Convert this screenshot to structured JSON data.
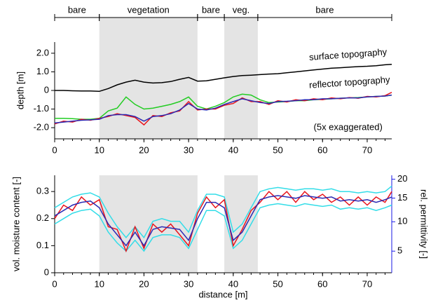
{
  "chart_data": [
    {
      "type": "line",
      "ylabel": "depth [m]",
      "regions": [
        {
          "label": "bare",
          "start": 0,
          "end": 10,
          "shaded": false
        },
        {
          "label": "vegetation",
          "start": 10,
          "end": 32,
          "shaded": true
        },
        {
          "label": "bare",
          "start": 32,
          "end": 38,
          "shaded": false
        },
        {
          "label": "veg.",
          "start": 38,
          "end": 45.5,
          "shaded": true
        },
        {
          "label": "bare",
          "start": 45.5,
          "end": 75.5,
          "shaded": false
        }
      ],
      "annotations": [
        "surface topography",
        "reflector topography",
        "(5x exaggerated)"
      ],
      "x": [
        0,
        2,
        4,
        6,
        8,
        10,
        12,
        14,
        16,
        18,
        20,
        22,
        24,
        26,
        28,
        30,
        32,
        34,
        36,
        38,
        40,
        42,
        44,
        46,
        48,
        50,
        52,
        54,
        56,
        58,
        60,
        62,
        64,
        66,
        68,
        70,
        72,
        74,
        75.5
      ],
      "series": [
        {
          "color": "#000000",
          "values": [
            0.0,
            0.0,
            -0.02,
            -0.03,
            -0.03,
            -0.05,
            0.1,
            0.3,
            0.45,
            0.55,
            0.45,
            0.4,
            0.42,
            0.48,
            0.6,
            0.7,
            0.5,
            0.52,
            0.6,
            0.68,
            0.75,
            0.8,
            0.82,
            0.85,
            0.88,
            0.9,
            0.95,
            1.0,
            1.05,
            1.1,
            1.15,
            1.2,
            1.22,
            1.25,
            1.28,
            1.3,
            1.33,
            1.38,
            1.4
          ]
        },
        {
          "color": "#22cc22",
          "values": [
            -1.5,
            -1.5,
            -1.52,
            -1.55,
            -1.55,
            -1.5,
            -1.1,
            -0.95,
            -0.35,
            -0.75,
            -1.0,
            -0.95,
            -0.85,
            -0.75,
            -0.6,
            -0.35,
            -0.85,
            -1.0,
            -0.85,
            -0.65,
            -0.35,
            -0.2,
            -0.25,
            -0.5,
            -0.65,
            -0.62,
            -0.6,
            -0.55,
            -0.55,
            -0.5,
            -0.48,
            -0.45,
            -0.42,
            -0.4,
            -0.38,
            -0.35,
            -0.32,
            -0.3,
            -0.25
          ]
        },
        {
          "color": "#e8141c",
          "values": [
            -1.8,
            -1.65,
            -1.7,
            -1.55,
            -1.6,
            -1.5,
            -1.4,
            -1.25,
            -1.35,
            -1.45,
            -1.85,
            -1.35,
            -1.4,
            -1.2,
            -1.1,
            -0.6,
            -1.05,
            -1.0,
            -1.0,
            -0.8,
            -0.7,
            -0.4,
            -0.6,
            -0.6,
            -0.75,
            -0.55,
            -0.62,
            -0.5,
            -0.55,
            -0.45,
            -0.5,
            -0.4,
            -0.45,
            -0.38,
            -0.42,
            -0.32,
            -0.35,
            -0.28,
            -0.1
          ]
        },
        {
          "color": "#2a2ab4",
          "values": [
            -1.75,
            -1.7,
            -1.65,
            -1.6,
            -1.58,
            -1.55,
            -1.35,
            -1.3,
            -1.3,
            -1.4,
            -1.65,
            -1.4,
            -1.35,
            -1.25,
            -1.05,
            -0.7,
            -1.0,
            -1.05,
            -0.95,
            -0.75,
            -0.6,
            -0.45,
            -0.55,
            -0.65,
            -0.7,
            -0.6,
            -0.58,
            -0.55,
            -0.5,
            -0.5,
            -0.45,
            -0.45,
            -0.42,
            -0.4,
            -0.4,
            -0.35,
            -0.32,
            -0.3,
            -0.25
          ]
        }
      ],
      "xlim": [
        0,
        75.5
      ],
      "xticks": [
        0,
        10,
        20,
        30,
        40,
        50,
        60,
        70
      ],
      "ylim": [
        -2.6,
        2.6
      ],
      "yticks": [
        {
          "value": -2,
          "label": "-2.0"
        },
        {
          "value": -1,
          "label": "-1.0"
        },
        0,
        {
          "value": 1,
          "label": "1.0"
        },
        {
          "value": 2,
          "label": "2.0"
        }
      ]
    },
    {
      "type": "line",
      "xlabel": "distance [m]",
      "ylabel": "vol. moisture content [-]",
      "y2label": "rel. permittivity [-]",
      "y2scale": "topp",
      "y2color": "#1a1ae6",
      "x": [
        0,
        2,
        4,
        6,
        8,
        10,
        12,
        14,
        16,
        18,
        20,
        22,
        24,
        26,
        28,
        30,
        32,
        34,
        36,
        38,
        40,
        42,
        44,
        46,
        48,
        50,
        52,
        54,
        56,
        58,
        60,
        62,
        64,
        66,
        68,
        70,
        72,
        74,
        75.5
      ],
      "series": [
        {
          "color": "#33dde8",
          "values": [
            0.24,
            0.26,
            0.28,
            0.29,
            0.295,
            0.28,
            0.22,
            0.17,
            0.13,
            0.17,
            0.13,
            0.19,
            0.2,
            0.19,
            0.19,
            0.15,
            0.23,
            0.29,
            0.29,
            0.28,
            0.15,
            0.18,
            0.24,
            0.3,
            0.31,
            0.315,
            0.31,
            0.305,
            0.31,
            0.31,
            0.305,
            0.31,
            0.3,
            0.3,
            0.295,
            0.3,
            0.295,
            0.3,
            0.32
          ]
        },
        {
          "color": "#33dde8",
          "values": [
            0.18,
            0.2,
            0.22,
            0.23,
            0.235,
            0.21,
            0.15,
            0.11,
            0.08,
            0.12,
            0.08,
            0.13,
            0.14,
            0.14,
            0.13,
            0.09,
            0.16,
            0.23,
            0.23,
            0.21,
            0.09,
            0.12,
            0.18,
            0.24,
            0.25,
            0.255,
            0.25,
            0.245,
            0.255,
            0.25,
            0.245,
            0.25,
            0.235,
            0.24,
            0.235,
            0.24,
            0.23,
            0.24,
            0.25
          ]
        },
        {
          "color": "#e8141c",
          "values": [
            0.2,
            0.25,
            0.23,
            0.28,
            0.25,
            0.27,
            0.17,
            0.16,
            0.08,
            0.17,
            0.09,
            0.18,
            0.15,
            0.18,
            0.14,
            0.1,
            0.22,
            0.28,
            0.24,
            0.27,
            0.1,
            0.16,
            0.23,
            0.26,
            0.3,
            0.27,
            0.3,
            0.26,
            0.3,
            0.27,
            0.29,
            0.26,
            0.28,
            0.25,
            0.28,
            0.25,
            0.28,
            0.26,
            0.3
          ]
        },
        {
          "color": "#2a2ab4",
          "values": [
            0.21,
            0.23,
            0.25,
            0.26,
            0.265,
            0.24,
            0.18,
            0.14,
            0.1,
            0.15,
            0.1,
            0.16,
            0.17,
            0.165,
            0.16,
            0.12,
            0.2,
            0.26,
            0.26,
            0.24,
            0.12,
            0.15,
            0.21,
            0.27,
            0.28,
            0.285,
            0.28,
            0.275,
            0.285,
            0.28,
            0.275,
            0.28,
            0.265,
            0.27,
            0.265,
            0.27,
            0.26,
            0.27,
            0.28
          ]
        }
      ],
      "xlim": [
        0,
        75.5
      ],
      "xticks": [
        0,
        10,
        20,
        30,
        40,
        50,
        60,
        70
      ],
      "ylim": [
        0,
        0.36
      ],
      "yticks": [
        0,
        0.1,
        0.2,
        0.3
      ],
      "y2lim": [
        1.9,
        21.5
      ],
      "y2ticks": [
        5,
        10,
        15,
        20
      ]
    }
  ]
}
